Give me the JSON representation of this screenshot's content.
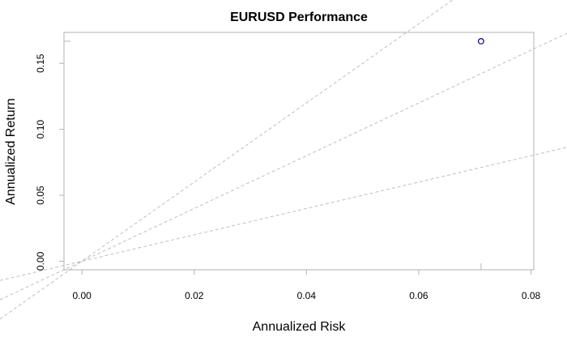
{
  "chart_data": {
    "type": "scatter",
    "title": "EURUSD Performance",
    "xlabel": "Annualized Risk",
    "ylabel": "Annualized Return",
    "xlim": [
      -0.0032,
      0.0805
    ],
    "ylim": [
      -0.0065,
      0.1735
    ],
    "x_ticks": [
      0.0,
      0.02,
      0.04,
      0.06,
      0.08
    ],
    "x_tick_labels": [
      "0.00",
      "0.02",
      "0.04",
      "0.06",
      "0.08"
    ],
    "y_ticks": [
      0.0,
      0.05,
      0.1,
      0.15
    ],
    "y_tick_labels": [
      "0.00",
      "0.05",
      "0.10",
      "0.15"
    ],
    "points": [
      {
        "name": "EURUSD",
        "x": 0.0711,
        "y": 0.1668
      }
    ],
    "reference_lines": [
      {
        "intercept": 0,
        "slope": 1
      },
      {
        "intercept": 0,
        "slope": 2
      },
      {
        "intercept": 0,
        "slope": 3
      }
    ],
    "colors": {
      "point": "#00007f",
      "reference_line": "#bfbfbf",
      "frame": "#b3b3b3"
    }
  }
}
